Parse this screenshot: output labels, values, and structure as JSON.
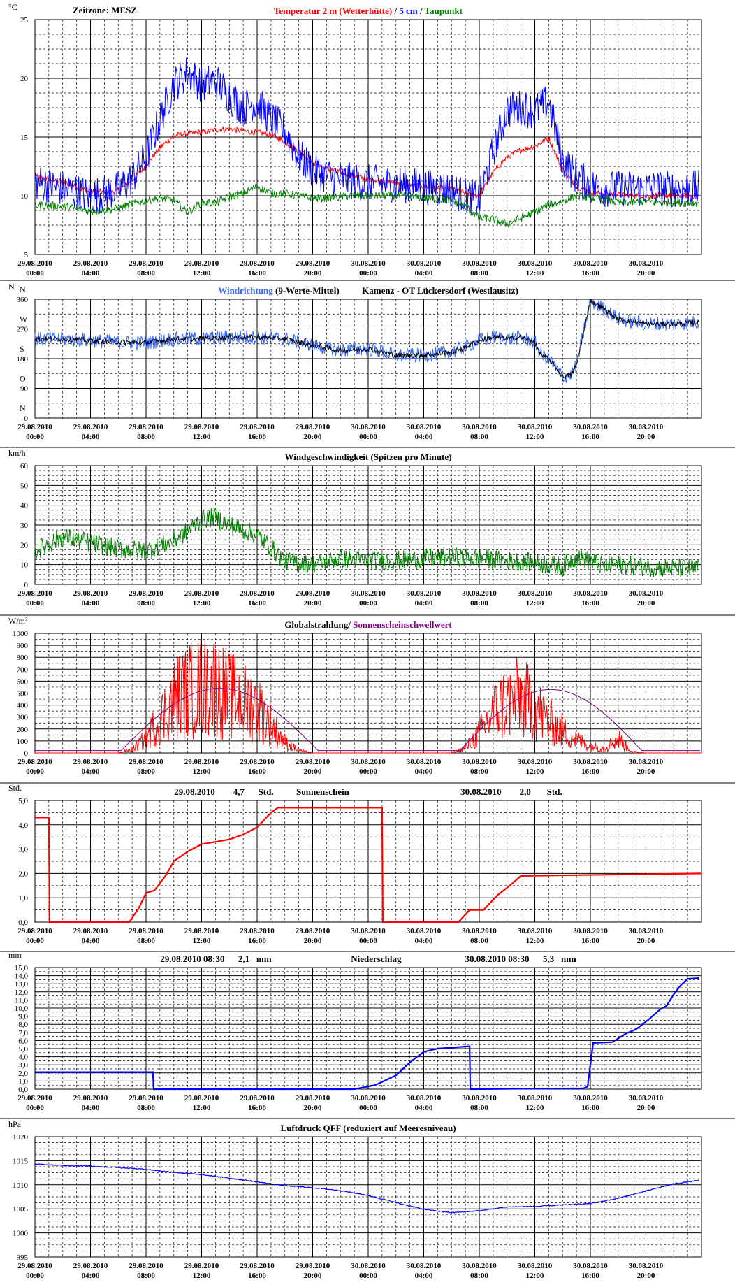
{
  "x_tick_labels": [
    [
      "29.08.2010",
      "00:00"
    ],
    [
      "29.08.2010",
      "04:00"
    ],
    [
      "29.08.2010",
      "08:00"
    ],
    [
      "29.08.2010",
      "12:00"
    ],
    [
      "29.08.2010",
      "16:00"
    ],
    [
      "29.08.2010",
      "20:00"
    ],
    [
      "30.08.2010",
      "00:00"
    ],
    [
      "30.08.2010",
      "04:00"
    ],
    [
      "30.08.2010",
      "08:00"
    ],
    [
      "30.08.2010",
      "12:00"
    ],
    [
      "30.08.2010",
      "16:00"
    ],
    [
      "30.08.2010",
      "20:00"
    ]
  ],
  "colors": {
    "frame": "#000000",
    "temperature": "#ff0000",
    "soil": "#0000ff",
    "dewpoint": "#008000",
    "wind_dir_raw": "#3366ff",
    "wind_dir_avg": "#000000",
    "wind_speed": "#008000",
    "radiation": "#ff0000",
    "threshold": "#800080",
    "sunshine": "#ff0000",
    "precip": "#0000ff",
    "pressure": "#0000ff"
  },
  "chart_data": [
    {
      "id": "temperature",
      "type": "line",
      "unit": "°C",
      "ylim": [
        5,
        25
      ],
      "yticks": [
        "5",
        "10",
        "15",
        "20",
        "25"
      ],
      "header": {
        "left": "Zeitzone: MESZ",
        "parts": [
          {
            "text": "Temperatur 2 m (Wetterhütte)",
            "color": "#ff0000"
          },
          {
            "text": " / ",
            "color": "#000000"
          },
          {
            "text": "5 cm",
            "color": "#0000ff"
          },
          {
            "text": " / ",
            "color": "#000000"
          },
          {
            "text": "Taupunkt",
            "color": "#008000"
          }
        ]
      },
      "x_hours": [
        0,
        2,
        4,
        6,
        7,
        8,
        9,
        10,
        11,
        12,
        13,
        14,
        15,
        16,
        17,
        18,
        19,
        20,
        21,
        22,
        23,
        24,
        26,
        28,
        30,
        31,
        32,
        33,
        34,
        35,
        36,
        37,
        38,
        39,
        40,
        41,
        42,
        44,
        46,
        47.8
      ],
      "series": [
        {
          "name": "Temperatur 2 m (Wetterhütte)",
          "color": "#ff0000",
          "noise": 0.25,
          "values": [
            11.6,
            11.2,
            10.3,
            10.4,
            11.3,
            12.6,
            14.1,
            15.1,
            15.3,
            15.4,
            15.6,
            15.7,
            15.5,
            15.4,
            15.2,
            14.6,
            13.8,
            12.8,
            12.3,
            12.0,
            11.7,
            11.4,
            11.1,
            10.8,
            10.6,
            10.2,
            10.0,
            12.0,
            13.3,
            13.9,
            14.2,
            14.9,
            12.2,
            10.8,
            10.3,
            10.2,
            10.1,
            10.0,
            10.0,
            10.0
          ]
        },
        {
          "name": "5 cm",
          "color": "#0000ff",
          "noise": 1.6,
          "values": [
            11.2,
            10.6,
            10.0,
            10.5,
            11.5,
            13.3,
            16.5,
            19.5,
            20.5,
            19.5,
            19.8,
            18.5,
            17.5,
            18.0,
            16.5,
            15.5,
            13.3,
            12.2,
            11.7,
            11.4,
            11.2,
            11.1,
            11.0,
            10.8,
            10.5,
            10.0,
            9.7,
            13.8,
            17.3,
            17.5,
            17.2,
            18.0,
            13.0,
            11.7,
            10.8,
            10.6,
            10.6,
            10.6,
            10.6,
            10.6
          ]
        },
        {
          "name": "Taupunkt",
          "color": "#008000",
          "noise": 0.35,
          "values": [
            9.2,
            9.1,
            8.7,
            8.9,
            9.3,
            9.6,
            9.8,
            9.6,
            8.6,
            9.4,
            9.4,
            9.9,
            10.2,
            10.8,
            10.2,
            10.2,
            10.0,
            9.8,
            9.8,
            9.9,
            10.0,
            10.0,
            10.0,
            9.8,
            9.6,
            9.1,
            8.1,
            8.0,
            7.6,
            8.1,
            8.6,
            9.3,
            9.5,
            10.0,
            9.8,
            9.7,
            9.4,
            9.5,
            9.4,
            9.4
          ]
        }
      ]
    },
    {
      "id": "wind_direction",
      "type": "line",
      "unit": "N",
      "ylim": [
        0,
        360
      ],
      "yticks": [
        "0",
        "90",
        "180",
        "270",
        "360"
      ],
      "compass": [
        "N",
        "O",
        "S",
        "W",
        "N"
      ],
      "header": {
        "left": "",
        "parts": [
          {
            "text": "Windrichtung",
            "color": "#3366ff"
          },
          {
            "text": " (9-Werte-Mittel)          Kamenz - OT Lückersdorf (Westlausitz)",
            "color": "#000000"
          }
        ]
      },
      "x_hours": [
        0,
        2,
        4,
        6,
        8,
        10,
        12,
        14,
        16,
        18,
        20,
        22,
        24,
        26,
        28,
        30,
        31,
        32,
        33,
        34,
        35,
        36,
        36.4,
        37.2,
        38,
        38.6,
        39,
        40,
        41,
        42,
        44,
        46,
        47.8
      ],
      "series": [
        {
          "name": "Windrichtung",
          "color": "#3366ff",
          "noise": 22,
          "values": [
            240,
            240,
            235,
            230,
            228,
            240,
            240,
            245,
            245,
            240,
            220,
            205,
            210,
            190,
            190,
            200,
            215,
            235,
            245,
            240,
            245,
            230,
            195,
            170,
            125,
            130,
            160,
            355,
            330,
            300,
            285,
            285,
            290
          ]
        },
        {
          "name": "9-Werte-Mittel",
          "color": "#000000",
          "noise": 8,
          "values": [
            240,
            240,
            235,
            230,
            228,
            240,
            240,
            245,
            245,
            240,
            220,
            205,
            210,
            190,
            190,
            200,
            215,
            235,
            245,
            240,
            245,
            230,
            195,
            170,
            125,
            130,
            160,
            355,
            330,
            300,
            285,
            285,
            290
          ]
        }
      ]
    },
    {
      "id": "wind_speed",
      "type": "line",
      "unit": "km/h",
      "ylim": [
        0,
        60
      ],
      "yticks": [
        "0",
        "10",
        "20",
        "30",
        "40",
        "50",
        "60"
      ],
      "header": {
        "left": "",
        "parts": [
          {
            "text": "Windgeschwindigkeit (Spitzen pro Minute)",
            "color": "#000000"
          }
        ]
      },
      "x_hours": [
        0,
        2,
        4,
        6,
        8,
        10,
        11,
        12,
        13,
        14,
        16,
        18,
        20,
        22,
        24,
        26,
        28,
        30,
        32,
        34,
        36,
        38,
        39,
        40,
        41,
        42,
        44,
        46,
        47.8
      ],
      "series": [
        {
          "name": "Windgeschwindigkeit",
          "color": "#008000",
          "noise": 5,
          "values": [
            17,
            24,
            21,
            18,
            17,
            22,
            27,
            33,
            34,
            30,
            25,
            12,
            10,
            13,
            12,
            12,
            13,
            14,
            13,
            12,
            11,
            9,
            14,
            12,
            9,
            10,
            9,
            8,
            8
          ]
        }
      ]
    },
    {
      "id": "radiation",
      "type": "line",
      "unit": "W/m²",
      "ylim": [
        0,
        1000
      ],
      "yticks": [
        "0",
        "100",
        "200",
        "300",
        "400",
        "500",
        "600",
        "700",
        "800",
        "900",
        "1000"
      ],
      "header": {
        "left": "",
        "parts": [
          {
            "text": "Globalstrahlung/ ",
            "color": "#000000"
          },
          {
            "text": "Sonnenscheinschwellwert",
            "color": "#800080"
          }
        ]
      },
      "x_hours": [
        0,
        6,
        7,
        8,
        9,
        10,
        11,
        12,
        13,
        14,
        15,
        16,
        17,
        18,
        19,
        20,
        30,
        31,
        32,
        33,
        34,
        35,
        36,
        37,
        38,
        39,
        40,
        41,
        42,
        43,
        44,
        48
      ],
      "series": [
        {
          "name": "Globalstrahlung",
          "color": "#ff0000",
          "noise_rel": 0.8,
          "values": [
            0,
            0,
            30,
            120,
            280,
            450,
            520,
            560,
            560,
            480,
            430,
            380,
            240,
            90,
            20,
            0,
            0,
            40,
            160,
            330,
            430,
            460,
            380,
            260,
            180,
            110,
            60,
            40,
            120,
            10,
            0,
            0
          ]
        },
        {
          "name": "Sonnenscheinschwellwert",
          "color": "#800080",
          "shape": "bell",
          "peaks": [
            {
              "from": 6.2,
              "to": 20.4,
              "max": 540,
              "base": 20
            },
            {
              "from": 30.6,
              "to": 43.7,
              "max": 530,
              "base": 20
            }
          ]
        }
      ]
    },
    {
      "id": "sunshine",
      "type": "line",
      "unit": "Std.",
      "ylim": [
        0,
        5
      ],
      "yticks": [
        "0,0",
        "1,0",
        "2,0",
        "3,0",
        "4,0",
        "5,0"
      ],
      "header": {
        "left": "",
        "parts": [
          {
            "text": "29.08.2010        4,7      Std.          Sonnenschein                                                 30.08.2010        2,0       Std.",
            "color": "#000000"
          }
        ]
      },
      "x_hours": [
        0,
        1,
        1.05,
        6.8,
        7.5,
        8.0,
        8.6,
        9.4,
        10,
        11,
        12,
        13,
        14,
        15,
        16,
        17,
        17.5,
        18,
        25,
        25.05,
        30.5,
        31.3,
        32.3,
        33.3,
        34.2,
        35,
        48
      ],
      "series": [
        {
          "name": "Sonnenschein",
          "color": "#ff0000",
          "values": [
            4.3,
            4.3,
            0,
            0,
            0.6,
            1.2,
            1.3,
            1.9,
            2.5,
            2.9,
            3.2,
            3.3,
            3.4,
            3.6,
            3.9,
            4.5,
            4.7,
            4.7,
            4.7,
            0,
            0,
            0.5,
            0.5,
            1.1,
            1.5,
            1.9,
            2.0
          ]
        }
      ]
    },
    {
      "id": "precipitation",
      "type": "line",
      "unit": "mm",
      "ylim": [
        0,
        15
      ],
      "yticks": [
        "0,0",
        "1,0",
        "2,0",
        "3,0",
        "4,0",
        "5,0",
        "6,0",
        "7,0",
        "8,0",
        "9,0",
        "10,0",
        "11,0",
        "12,0",
        "13,0",
        "14,0",
        "15,0"
      ],
      "header": {
        "left": "",
        "parts": [
          {
            "text": "29.08.2010 08:30      2,1   mm                                   Niederschlag                            30.08.2010 08:30      5,3   mm",
            "color": "#000000"
          }
        ]
      },
      "x_hours": [
        0,
        8.5,
        8.55,
        23,
        24.5,
        26,
        27,
        28,
        29,
        31.3,
        31.35,
        39.5,
        39.8,
        40.2,
        41.6,
        42.5,
        43.3,
        44.2,
        45,
        45.5,
        46,
        46.5,
        47,
        47.8
      ],
      "series": [
        {
          "name": "Niederschlag",
          "color": "#0000ff",
          "values": [
            2.1,
            2.1,
            0,
            0,
            0.5,
            1.7,
            3.3,
            4.6,
            5.0,
            5.3,
            0,
            0.1,
            0.3,
            5.7,
            5.8,
            6.8,
            7.4,
            8.6,
            9.8,
            10.3,
            11.7,
            12.8,
            13.6,
            13.7
          ]
        }
      ]
    },
    {
      "id": "pressure",
      "type": "line",
      "unit": "hPa",
      "ylim": [
        995,
        1020
      ],
      "yticks": [
        "995",
        "1000",
        "1005",
        "1010",
        "1015",
        "1020"
      ],
      "header": {
        "left": "",
        "parts": [
          {
            "text": "Luftdruck QFF (reduziert auf Meeresniveau)",
            "color": "#000000"
          }
        ]
      },
      "x_hours": [
        0,
        2,
        4,
        6,
        8,
        10,
        12,
        14,
        16,
        18,
        20,
        22,
        24,
        26,
        28,
        30,
        32,
        34,
        36,
        38,
        40,
        42,
        44,
        46,
        47.8
      ],
      "series": [
        {
          "name": "Luftdruck QFF",
          "color": "#0000ff",
          "noise": 0.1,
          "values": [
            1014.3,
            1014.0,
            1013.9,
            1013.6,
            1013.2,
            1012.6,
            1012.1,
            1011.4,
            1010.6,
            1009.8,
            1009.4,
            1008.8,
            1007.8,
            1006.3,
            1004.9,
            1004.2,
            1004.6,
            1005.4,
            1005.5,
            1005.8,
            1006.1,
            1007.2,
            1008.7,
            1010.2,
            1010.9
          ]
        }
      ]
    }
  ]
}
